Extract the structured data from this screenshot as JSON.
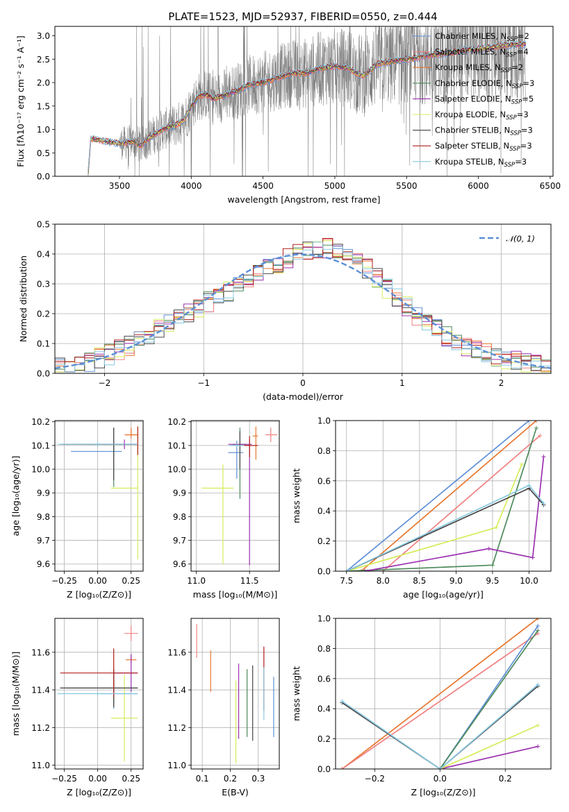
{
  "figure": {
    "title": "PLATE=1523, MJD=52937, FIBERID=0550, z=0.444"
  },
  "colors": {
    "Chabrier MILES": "#5f8fd6",
    "Salpeter MILES": "#f08080",
    "Kroupa MILES": "#e8772e",
    "Chabrier ELODIE": "#4d8a5a",
    "Salpeter ELODIE": "#9b30b0",
    "Kroupa ELODIE": "#d6ec5a",
    "Chabrier STELIB": "#444444",
    "Salpeter STELIB": "#b01c1c",
    "Kroupa STELIB": "#88c8e0",
    "data": "#808080",
    "normal": "#5b8fd6"
  },
  "chart_data": [
    {
      "id": "spectrum",
      "type": "line",
      "xlabel": "wavelength [Angstrom, rest frame]",
      "ylabel": "Flux [fλ10⁻¹⁷ erg cm⁻² s⁻¹ A⁻¹]",
      "xlim": [
        3050,
        6520
      ],
      "ylim": [
        0,
        3.2
      ],
      "xticks": [
        "3500",
        "4000",
        "4500",
        "5000",
        "5500",
        "6000",
        "6500"
      ],
      "yticks": [
        "0.0",
        "0.5",
        "1.0",
        "1.5",
        "2.0",
        "2.5",
        "3.0"
      ],
      "grid": false,
      "legend_position": "top-right",
      "series": [
        {
          "name": "Chabrier MILES, N_SSP=2"
        },
        {
          "name": "Salpeter MILES, N_SSP=4"
        },
        {
          "name": "Kroupa MILES, N_SSP=2"
        },
        {
          "name": "Chabrier ELODIE, N_SSP=3"
        },
        {
          "name": "Salpeter ELODIE, N_SSP=5"
        },
        {
          "name": "Kroupa ELODIE, N_SSP=3"
        },
        {
          "name": "Chabrier STELIB, N_SSP=3"
        },
        {
          "name": "Salpeter STELIB, N_SSP=3"
        },
        {
          "name": "Kroupa STELIB, N_SSP=3"
        }
      ],
      "model_shape": {
        "x": [
          3280,
          3300,
          3400,
          3500,
          3550,
          3600,
          3650,
          3700,
          3750,
          3800,
          3850,
          3900,
          3950,
          4000,
          4050,
          4100,
          4150,
          4200,
          4300,
          4400,
          4500,
          4600,
          4700,
          4800,
          4900,
          5000,
          5100,
          5150,
          5200,
          5300,
          5400,
          5500,
          5600,
          5700,
          5800,
          5900,
          6000,
          6100,
          6200,
          6300
        ],
        "y": [
          0.0,
          0.8,
          0.75,
          0.7,
          0.72,
          0.75,
          0.65,
          0.8,
          0.9,
          1.0,
          1.05,
          1.1,
          1.2,
          1.5,
          1.7,
          1.75,
          1.65,
          1.7,
          1.8,
          1.95,
          2.0,
          2.1,
          2.2,
          2.2,
          2.3,
          2.35,
          2.3,
          2.2,
          2.15,
          2.4,
          2.45,
          2.5,
          2.55,
          2.6,
          2.62,
          2.7,
          2.72,
          2.75,
          2.8,
          2.82
        ]
      }
    },
    {
      "id": "residuals",
      "type": "bar",
      "xlabel": "(data-model)/error",
      "ylabel": "Normed distribution",
      "xlim": [
        -2.5,
        2.5
      ],
      "ylim": [
        0,
        0.5
      ],
      "xticks": [
        "−2",
        "−1",
        "0",
        "1",
        "2"
      ],
      "yticks": [
        "0.0",
        "0.1",
        "0.2",
        "0.3",
        "0.4",
        "0.5"
      ],
      "grid": true,
      "legend_position": "top-right",
      "legend": [
        "𝒩(0, 1)"
      ],
      "bin_width": 0.1,
      "normal_curve": {
        "mean": 0,
        "sigma": 1
      }
    },
    {
      "id": "age-vs-Z",
      "type": "scatter",
      "xlabel": "Z [log₁₀(Z/Z⊙)]",
      "ylabel": "age  [log₁₀(age/yr)]",
      "xlim": [
        -0.32,
        0.34
      ],
      "ylim": [
        9.57,
        10.205
      ],
      "xticks": [
        "−0.25",
        "0.00",
        "0.25"
      ],
      "yticks": [
        "9.6",
        "9.7",
        "9.8",
        "9.9",
        "10.0",
        "10.1",
        "10.2"
      ],
      "grid": true,
      "points": [
        {
          "series": "Chabrier MILES",
          "x": 0.12,
          "y": 10.075,
          "xerr": [
            0.32,
            0.06
          ],
          "yerr": [
            0.02,
            0.02
          ]
        },
        {
          "series": "Salpeter MILES",
          "x": 0.25,
          "y": 10.145,
          "xerr": [
            0.05,
            0.05
          ],
          "yerr": [
            0.015,
            0.015
          ]
        },
        {
          "series": "Kroupa MILES",
          "x": 0.25,
          "y": 10.145,
          "xerr": [
            0.04,
            0.05
          ],
          "yerr": [
            0.01,
            0.03
          ]
        },
        {
          "series": "Chabrier ELODIE",
          "x": 0.12,
          "y": 10.105,
          "xerr": [
            0.38,
            0.18
          ],
          "yerr": [
            0.18,
            0.07
          ]
        },
        {
          "series": "Salpeter ELODIE",
          "x": 0.2,
          "y": 10.105,
          "xerr": [
            0.3,
            0.1
          ],
          "yerr": [
            0.02,
            0.02
          ]
        },
        {
          "series": "Kroupa ELODIE",
          "x": 0.3,
          "y": 9.92,
          "xerr": [
            0.2,
            0.0
          ],
          "yerr": [
            0.3,
            0.26
          ]
        },
        {
          "series": "Chabrier STELIB",
          "x": 0.12,
          "y": 10.105,
          "xerr": [
            0.4,
            0.18
          ],
          "yerr": [
            0.15,
            0.07
          ]
        },
        {
          "series": "Salpeter STELIB",
          "x": 0.3,
          "y": 10.11,
          "xerr": [
            0.0,
            0.0
          ],
          "yerr": [
            0.05,
            0.07
          ]
        },
        {
          "series": "Kroupa STELIB",
          "x": 0.0,
          "y": 10.105,
          "xerr": [
            0.3,
            0.3
          ],
          "yerr": [
            0.01,
            0.01
          ]
        }
      ]
    },
    {
      "id": "age-vs-mass",
      "type": "scatter",
      "xlabel": "mass [log₁₀(M/M⊙)]",
      "ylabel": "",
      "xlim": [
        10.95,
        11.78
      ],
      "ylim": [
        9.57,
        10.205
      ],
      "xticks": [
        "11.0",
        "11.5"
      ],
      "yticks": [
        "9.6",
        "9.7",
        "9.8",
        "9.9",
        "10.0",
        "10.1",
        "10.2"
      ],
      "grid": true,
      "points": [
        {
          "series": "Chabrier MILES",
          "x": 11.38,
          "y": 10.07,
          "xerr": [
            0.08,
            0.06
          ],
          "yerr": [
            0.11,
            0.05
          ]
        },
        {
          "series": "Salpeter MILES",
          "x": 11.7,
          "y": 10.145,
          "xerr": [
            0.05,
            0.06
          ],
          "yerr": [
            0.03,
            0.03
          ]
        },
        {
          "series": "Kroupa MILES",
          "x": 11.56,
          "y": 10.14,
          "xerr": [
            0.03,
            0.02
          ],
          "yerr": [
            0.1,
            0.04
          ]
        },
        {
          "series": "Chabrier ELODIE",
          "x": 11.41,
          "y": 10.105,
          "xerr": [
            0.07,
            0.06
          ],
          "yerr": [
            0.23,
            0.07
          ]
        },
        {
          "series": "Salpeter ELODIE",
          "x": 11.5,
          "y": 10.105,
          "xerr": [
            0.2,
            0.02
          ],
          "yerr": [
            0.51,
            0.02
          ]
        },
        {
          "series": "Kroupa ELODIE",
          "x": 11.25,
          "y": 9.92,
          "xerr": [
            0.2,
            0.1
          ],
          "yerr": [
            0.32,
            0.1
          ]
        },
        {
          "series": "Chabrier STELIB",
          "x": 11.41,
          "y": 10.1,
          "xerr": [
            0.09,
            0.09
          ],
          "yerr": [
            0.1,
            0.06
          ]
        },
        {
          "series": "Salpeter STELIB",
          "x": 11.5,
          "y": 10.1,
          "xerr": [
            0.1,
            0.08
          ],
          "yerr": [
            0.05,
            0.04
          ]
        },
        {
          "series": "Kroupa STELIB",
          "x": 11.38,
          "y": 10.1,
          "xerr": [
            0.07,
            0.07
          ],
          "yerr": [
            0.01,
            0.01
          ]
        }
      ]
    },
    {
      "id": "weight-vs-age",
      "type": "line",
      "xlabel": "age  [log₁₀(age/yr)]",
      "ylabel": "mass weight",
      "xlim": [
        7.35,
        10.3
      ],
      "ylim": [
        0,
        1
      ],
      "xticks": [
        "7.5",
        "8.0",
        "8.5",
        "9.0",
        "9.5",
        "10.0"
      ],
      "yticks": [
        "0.0",
        "0.2",
        "0.4",
        "0.6",
        "0.8",
        "1.0"
      ],
      "grid": true,
      "series": [
        {
          "series": "Chabrier MILES",
          "x": [
            7.5,
            10.0
          ],
          "y": [
            0.0,
            1.0
          ]
        },
        {
          "series": "Kroupa MILES",
          "x": [
            7.7,
            10.1
          ],
          "y": [
            0.0,
            1.0
          ]
        },
        {
          "series": "Salpeter MILES",
          "x": [
            8.0,
            10.15
          ],
          "y": [
            0.0,
            0.9
          ]
        },
        {
          "series": "Chabrier ELODIE",
          "x": [
            7.5,
            9.5,
            10.1
          ],
          "y": [
            0.0,
            0.04,
            0.95
          ]
        },
        {
          "series": "Salpeter ELODIE",
          "x": [
            7.75,
            9.45,
            10.05,
            10.2
          ],
          "y": [
            0.0,
            0.15,
            0.09,
            0.76
          ]
        },
        {
          "series": "Kroupa ELODIE",
          "x": [
            7.5,
            9.55,
            9.9
          ],
          "y": [
            0.0,
            0.29,
            0.71
          ]
        },
        {
          "series": "Chabrier STELIB",
          "x": [
            7.5,
            10.0,
            10.2
          ],
          "y": [
            0.0,
            0.55,
            0.44
          ]
        },
        {
          "series": "Kroupa STELIB",
          "x": [
            7.5,
            10.0,
            10.2
          ],
          "y": [
            0.0,
            0.57,
            0.45
          ]
        }
      ]
    },
    {
      "id": "mass-vs-Z",
      "type": "scatter",
      "xlabel": "Z [log₁₀(Z/Z⊙)]",
      "ylabel": "mass [log₁₀(M/M⊙)]",
      "xlim": [
        -0.32,
        0.34
      ],
      "ylim": [
        10.98,
        11.78
      ],
      "xticks": [
        "−0.25",
        "0.00",
        "0.25"
      ],
      "yticks": [
        "11.0",
        "11.2",
        "11.4",
        "11.6"
      ],
      "grid": true,
      "points": [
        {
          "series": "Chabrier MILES",
          "x": 0.12,
          "y": 11.38,
          "xerr": [
            0.1,
            0.18
          ],
          "yerr": [
            0.08,
            0.08
          ]
        },
        {
          "series": "Salpeter MILES",
          "x": 0.25,
          "y": 11.7,
          "xerr": [
            0.05,
            0.05
          ],
          "yerr": [
            0.04,
            0.04
          ]
        },
        {
          "series": "Kroupa MILES",
          "x": 0.25,
          "y": 11.56,
          "xerr": [
            0.04,
            0.04
          ],
          "yerr": [
            0.02,
            0.02
          ]
        },
        {
          "series": "Chabrier ELODIE",
          "x": 0.12,
          "y": 11.41,
          "xerr": [
            0.4,
            0.18
          ],
          "yerr": [
            0.1,
            0.1
          ]
        },
        {
          "series": "Salpeter ELODIE",
          "x": 0.25,
          "y": 11.49,
          "xerr": [
            0.13,
            0.05
          ],
          "yerr": [
            0.1,
            0.1
          ]
        },
        {
          "series": "Kroupa ELODIE",
          "x": 0.2,
          "y": 11.25,
          "xerr": [
            0.1,
            0.1
          ],
          "yerr": [
            0.23,
            0.23
          ]
        },
        {
          "series": "Chabrier STELIB",
          "x": 0.12,
          "y": 11.41,
          "xerr": [
            0.4,
            0.18
          ],
          "yerr": [
            0.1,
            0.1
          ]
        },
        {
          "series": "Salpeter STELIB",
          "x": 0.12,
          "y": 11.49,
          "xerr": [
            0.4,
            0.18
          ],
          "yerr": [
            0.13,
            0.13
          ]
        },
        {
          "series": "Kroupa STELIB",
          "x": 0.0,
          "y": 11.38,
          "xerr": [
            0.3,
            0.3
          ],
          "yerr": [
            0.01,
            0.01
          ]
        }
      ]
    },
    {
      "id": "mass-vs-EBV",
      "type": "scatter",
      "xlabel": "E(B-V)",
      "ylabel": "",
      "xlim": [
        0.06,
        0.375
      ],
      "ylim": [
        10.98,
        11.78
      ],
      "xticks": [
        "0.1",
        "0.2",
        "0.3"
      ],
      "yticks": [
        "11.0",
        "11.2",
        "11.4",
        "11.6"
      ],
      "grid": true,
      "points": [
        {
          "series": "Salpeter MILES",
          "x": 0.08,
          "y": 11.66,
          "xerr": [
            0,
            0
          ],
          "yerr": [
            0.09,
            0.09
          ]
        },
        {
          "series": "Kroupa MILES",
          "x": 0.13,
          "y": 11.5,
          "xerr": [
            0,
            0
          ],
          "yerr": [
            0.11,
            0.11
          ]
        },
        {
          "series": "Kroupa ELODIE",
          "x": 0.22,
          "y": 11.23,
          "xerr": [
            0,
            0
          ],
          "yerr": [
            0.22,
            0.22
          ]
        },
        {
          "series": "Salpeter ELODIE",
          "x": 0.23,
          "y": 11.34,
          "xerr": [
            0,
            0
          ],
          "yerr": [
            0.2,
            0.2
          ]
        },
        {
          "series": "Chabrier ELODIE",
          "x": 0.26,
          "y": 11.33,
          "xerr": [
            0,
            0
          ],
          "yerr": [
            0.18,
            0.18
          ]
        },
        {
          "series": "Chabrier STELIB",
          "x": 0.28,
          "y": 11.33,
          "xerr": [
            0,
            0
          ],
          "yerr": [
            0.2,
            0.2
          ]
        },
        {
          "series": "Salpeter STELIB",
          "x": 0.32,
          "y": 11.46,
          "xerr": [
            0,
            0
          ],
          "yerr": [
            0.17,
            0.17
          ]
        },
        {
          "series": "Kroupa STELIB",
          "x": 0.32,
          "y": 11.38,
          "xerr": [
            0,
            0
          ],
          "yerr": [
            0.14,
            0.14
          ]
        },
        {
          "series": "Chabrier MILES",
          "x": 0.355,
          "y": 11.31,
          "xerr": [
            0,
            0
          ],
          "yerr": [
            0.16,
            0.16
          ]
        }
      ]
    },
    {
      "id": "weight-vs-Z",
      "type": "line",
      "xlabel": "Z [log₁₀(Z/Z⊙)]",
      "ylabel": "mass weight",
      "xlim": [
        -0.32,
        0.34
      ],
      "ylim": [
        0,
        1
      ],
      "xticks": [
        "−0.2",
        "0.0",
        "0.2"
      ],
      "yticks": [
        "0.0",
        "0.2",
        "0.4",
        "0.6",
        "0.8",
        "1.0"
      ],
      "grid": true,
      "series": [
        {
          "series": "Kroupa MILES",
          "x": [
            -0.3,
            0.3
          ],
          "y": [
            0.0,
            1.0
          ]
        },
        {
          "series": "Salpeter MILES",
          "x": [
            -0.3,
            0.3
          ],
          "y": [
            0.0,
            0.9
          ]
        },
        {
          "series": "Chabrier MILES",
          "x": [
            0.0,
            0.3
          ],
          "y": [
            0.0,
            0.95
          ]
        },
        {
          "series": "Chabrier ELODIE",
          "x": [
            0.0,
            0.3
          ],
          "y": [
            0.0,
            0.92
          ]
        },
        {
          "series": "Salpeter ELODIE",
          "x": [
            0.0,
            0.3
          ],
          "y": [
            0.0,
            0.15
          ]
        },
        {
          "series": "Kroupa ELODIE",
          "x": [
            0.0,
            0.3
          ],
          "y": [
            0.0,
            0.29
          ]
        },
        {
          "series": "Chabrier STELIB",
          "x": [
            -0.3,
            0.0,
            0.3
          ],
          "y": [
            0.44,
            0.0,
            0.55
          ]
        },
        {
          "series": "Kroupa STELIB",
          "x": [
            -0.3,
            0.0,
            0.3
          ],
          "y": [
            0.45,
            0.0,
            0.56
          ]
        }
      ]
    }
  ]
}
